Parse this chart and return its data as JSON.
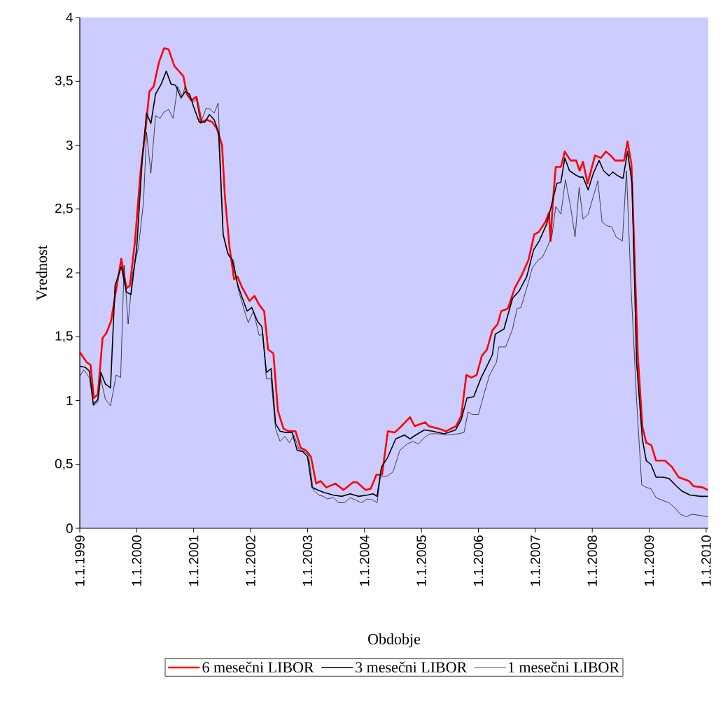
{
  "chart_data": {
    "type": "line",
    "xlabel": "Obdobje",
    "ylabel": "Vrednost",
    "legend": "bottom",
    "grid": false,
    "xlim": [
      "1999-01-01",
      "2010-01-15"
    ],
    "ylim": [
      0,
      4
    ],
    "xticks": [
      {
        "value": "1999-01-01",
        "label": "1.1.1999"
      },
      {
        "value": "2000-01-01",
        "label": "1.1.2000"
      },
      {
        "value": "2001-01-01",
        "label": "1.1.2001"
      },
      {
        "value": "2002-01-01",
        "label": "1.1.2002"
      },
      {
        "value": "2003-01-01",
        "label": "1.1.2003"
      },
      {
        "value": "2004-01-01",
        "label": "1.1.2004"
      },
      {
        "value": "2005-01-01",
        "label": "1.1.2005"
      },
      {
        "value": "2006-01-01",
        "label": "1.1.2006"
      },
      {
        "value": "2007-01-01",
        "label": "1.1.2007"
      },
      {
        "value": "2008-01-01",
        "label": "1.1.2008"
      },
      {
        "value": "2009-01-01",
        "label": "1.1.2009"
      },
      {
        "value": "2010-01-01",
        "label": "1.1.2010"
      }
    ],
    "yticks": [
      0,
      {
        "value": 0.5,
        "label": "0,5"
      },
      1,
      {
        "value": 1.5,
        "label": "1,5"
      },
      2,
      {
        "value": 2.5,
        "label": "2,5"
      },
      3,
      {
        "value": 3.5,
        "label": "3,5"
      },
      4
    ],
    "series": [
      {
        "name": "6 mesečni LIBOR",
        "color": "#ff0000",
        "x": [
          "1999-01-01",
          "1999-02-14",
          "1999-03-11",
          "1999-04-01",
          "1999-04-27",
          "1999-05-27",
          "1999-06-21",
          "1999-07-20",
          "1999-09-02",
          "1999-09-24",
          "1999-10-27",
          "1999-11-18",
          "1999-12-21",
          "2000-01-26",
          "2000-02-25",
          "2000-03-22",
          "2000-04-19",
          "2000-05-23",
          "2000-06-25",
          "2000-07-24",
          "2000-08-30",
          "2000-10-05",
          "2000-10-27",
          "2000-11-18",
          "2000-12-17",
          "2001-01-19",
          "2001-02-21",
          "2001-03-25",
          "2001-05-01",
          "2001-05-30",
          "2001-07-02",
          "2001-07-20",
          "2001-08-19",
          "2001-09-17",
          "2001-10-09",
          "2001-11-10",
          "2001-12-25",
          "2002-01-26",
          "2002-02-25",
          "2002-03-29",
          "2002-04-23",
          "2002-05-27",
          "2002-06-25",
          "2002-07-31",
          "2002-09-02",
          "2002-10-16",
          "2002-11-18",
          "2002-12-21",
          "2003-01-23",
          "2003-02-25",
          "2003-03-25",
          "2003-05-01",
          "2003-06-29",
          "2003-08-19",
          "2003-10-20",
          "2003-11-14",
          "2004-01-08",
          "2004-02-10",
          "2004-03-18",
          "2004-04-23",
          "2004-05-30",
          "2004-07-13",
          "2004-08-26",
          "2004-10-20",
          "2004-11-18",
          "2005-01-26",
          "2005-02-17",
          "2005-04-23",
          "2005-06-07",
          "2005-08-11",
          "2005-09-13",
          "2005-10-16",
          "2005-11-18",
          "2005-12-21",
          "2006-01-23",
          "2006-02-25",
          "2006-04-01",
          "2006-05-05",
          "2006-05-27",
          "2006-07-09",
          "2006-08-22",
          "2006-10-05",
          "2006-11-18",
          "2006-12-25",
          "2007-01-23",
          "2007-03-07",
          "2007-03-29",
          "2007-04-09",
          "2007-04-23",
          "2007-05-12",
          "2007-06-14",
          "2007-07-09",
          "2007-08-15",
          "2007-09-20",
          "2007-10-12",
          "2007-11-03",
          "2007-12-02",
          "2008-01-19",
          "2008-02-25",
          "2008-03-29",
          "2008-04-27",
          "2008-05-27",
          "2008-07-24",
          "2008-08-15",
          "2008-09-09",
          "2008-10-20",
          "2008-11-18",
          "2008-12-13",
          "2009-01-15",
          "2009-02-14",
          "2009-04-12",
          "2009-05-27",
          "2009-07-09",
          "2009-09-13",
          "2009-10-12",
          "2009-12-10",
          "2010-01-12"
        ],
        "values": [
          1.38,
          1.3,
          1.28,
          1.02,
          1.05,
          1.49,
          1.53,
          1.62,
          1.95,
          2.11,
          1.88,
          1.9,
          2.25,
          2.8,
          3.1,
          3.42,
          3.46,
          3.65,
          3.76,
          3.75,
          3.62,
          3.57,
          3.54,
          3.4,
          3.35,
          3.38,
          3.18,
          3.2,
          3.18,
          3.13,
          3.0,
          2.6,
          2.2,
          1.95,
          1.97,
          1.88,
          1.78,
          1.82,
          1.75,
          1.7,
          1.4,
          1.37,
          0.92,
          0.78,
          0.76,
          0.76,
          0.63,
          0.61,
          0.56,
          0.35,
          0.37,
          0.32,
          0.35,
          0.3,
          0.36,
          0.36,
          0.3,
          0.31,
          0.42,
          0.42,
          0.76,
          0.75,
          0.8,
          0.87,
          0.8,
          0.83,
          0.8,
          0.78,
          0.76,
          0.8,
          0.88,
          1.2,
          1.18,
          1.2,
          1.35,
          1.4,
          1.55,
          1.6,
          1.7,
          1.72,
          1.88,
          1.98,
          2.1,
          2.3,
          2.32,
          2.4,
          2.47,
          2.25,
          2.55,
          2.83,
          2.83,
          2.95,
          2.88,
          2.88,
          2.8,
          2.87,
          2.7,
          2.92,
          2.9,
          2.95,
          2.92,
          2.88,
          2.88,
          3.03,
          2.85,
          1.35,
          0.8,
          0.67,
          0.65,
          0.53,
          0.53,
          0.48,
          0.4,
          0.37,
          0.33,
          0.32,
          0.3
        ]
      },
      {
        "name": "3 mesečni LIBOR",
        "color": "#000000",
        "x": [
          "1999-01-01",
          "1999-02-06",
          "1999-03-04",
          "1999-03-29",
          "1999-04-27",
          "1999-05-16",
          "1999-06-14",
          "1999-07-17",
          "1999-08-15",
          "1999-09-24",
          "1999-10-27",
          "1999-11-25",
          "2000-01-01",
          "2000-02-06",
          "2000-03-04",
          "2000-04-01",
          "2000-05-01",
          "2000-06-07",
          "2000-07-09",
          "2000-08-08",
          "2000-09-06",
          "2000-10-12",
          "2000-11-07",
          "2000-12-06",
          "2001-01-01",
          "2001-02-06",
          "2001-03-14",
          "2001-04-12",
          "2001-05-12",
          "2001-06-10",
          "2001-07-09",
          "2001-08-08",
          "2001-09-06",
          "2001-10-12",
          "2001-11-10",
          "2001-12-10",
          "2002-01-08",
          "2002-02-14",
          "2002-03-14",
          "2002-04-12",
          "2002-05-12",
          "2002-06-10",
          "2002-07-09",
          "2002-08-15",
          "2002-09-24",
          "2002-10-27",
          "2002-12-02",
          "2003-01-01",
          "2003-01-30",
          "2003-03-07",
          "2003-04-19",
          "2003-06-14",
          "2003-08-08",
          "2003-10-01",
          "2003-11-25",
          "2004-01-19",
          "2004-02-25",
          "2004-03-22",
          "2004-04-19",
          "2004-05-27",
          "2004-07-20",
          "2004-09-13",
          "2004-10-20",
          "2004-11-25",
          "2005-01-19",
          "2005-03-14",
          "2005-05-27",
          "2005-08-08",
          "2005-09-13",
          "2005-10-20",
          "2005-12-02",
          "2006-01-19",
          "2006-02-25",
          "2006-04-01",
          "2006-04-19",
          "2006-06-14",
          "2006-08-08",
          "2006-09-20",
          "2006-11-07",
          "2006-12-21",
          "2007-01-26",
          "2007-03-14",
          "2007-04-19",
          "2007-05-19",
          "2007-06-14",
          "2007-07-09",
          "2007-08-08",
          "2007-09-13",
          "2007-10-12",
          "2007-11-03",
          "2007-12-06",
          "2008-01-08",
          "2008-02-14",
          "2008-03-14",
          "2008-04-19",
          "2008-05-12",
          "2008-06-14",
          "2008-07-17",
          "2008-08-15",
          "2008-09-13",
          "2008-10-12",
          "2008-11-18",
          "2008-12-13",
          "2009-01-12",
          "2009-02-14",
          "2009-04-01",
          "2009-05-08",
          "2009-06-25",
          "2009-07-31",
          "2009-09-20",
          "2009-11-25",
          "2010-01-12"
        ],
        "values": [
          1.27,
          1.26,
          1.23,
          0.97,
          1.01,
          1.22,
          1.13,
          1.1,
          1.9,
          2.05,
          1.85,
          1.83,
          2.2,
          2.9,
          3.25,
          3.17,
          3.4,
          3.48,
          3.58,
          3.48,
          3.47,
          3.37,
          3.42,
          3.4,
          3.3,
          3.18,
          3.18,
          3.24,
          3.2,
          3.1,
          2.3,
          2.15,
          2.1,
          1.9,
          1.8,
          1.7,
          1.73,
          1.62,
          1.58,
          1.22,
          1.25,
          0.82,
          0.76,
          0.75,
          0.75,
          0.61,
          0.6,
          0.56,
          0.32,
          0.3,
          0.28,
          0.26,
          0.25,
          0.27,
          0.25,
          0.26,
          0.27,
          0.25,
          0.48,
          0.55,
          0.7,
          0.73,
          0.7,
          0.73,
          0.77,
          0.76,
          0.74,
          0.77,
          0.85,
          1.02,
          1.03,
          1.18,
          1.27,
          1.36,
          1.52,
          1.56,
          1.8,
          1.86,
          1.97,
          2.18,
          2.25,
          2.38,
          2.55,
          2.7,
          2.71,
          2.9,
          2.8,
          2.77,
          2.75,
          2.75,
          2.65,
          2.78,
          2.88,
          2.8,
          2.76,
          2.79,
          2.76,
          2.74,
          2.95,
          2.7,
          1.3,
          0.7,
          0.53,
          0.5,
          0.4,
          0.4,
          0.39,
          0.33,
          0.29,
          0.26,
          0.25,
          0.25
        ]
      },
      {
        "name": "1 mesečni LIBOR",
        "color": "#000000",
        "x": [
          "1999-01-01",
          "1999-01-26",
          "1999-03-04",
          "1999-03-29",
          "1999-04-27",
          "1999-05-16",
          "1999-06-14",
          "1999-07-17",
          "1999-08-22",
          "1999-09-20",
          "1999-10-12",
          "1999-11-07",
          "1999-12-06",
          "2000-01-12",
          "2000-02-14",
          "2000-03-04",
          "2000-04-01",
          "2000-05-01",
          "2000-05-30",
          "2000-06-25",
          "2000-07-24",
          "2000-08-22",
          "2000-09-20",
          "2000-10-20",
          "2000-11-07",
          "2000-12-06",
          "2001-01-01",
          "2001-01-19",
          "2001-02-14",
          "2001-03-22",
          "2001-04-19",
          "2001-05-12",
          "2001-06-07",
          "2001-07-09",
          "2001-08-15",
          "2001-09-13",
          "2001-10-12",
          "2001-11-18",
          "2001-12-17",
          "2002-01-19",
          "2002-02-25",
          "2002-03-22",
          "2002-04-12",
          "2002-05-12",
          "2002-06-10",
          "2002-07-09",
          "2002-08-08",
          "2002-09-06",
          "2002-10-05",
          "2002-11-07",
          "2002-12-13",
          "2003-01-08",
          "2003-02-06",
          "2003-03-14",
          "2003-04-12",
          "2003-05-08",
          "2003-06-14",
          "2003-07-20",
          "2003-08-26",
          "2003-10-01",
          "2003-11-07",
          "2003-12-13",
          "2004-01-19",
          "2004-02-25",
          "2004-03-22",
          "2004-04-12",
          "2004-05-27",
          "2004-07-02",
          "2004-08-15",
          "2004-10-01",
          "2004-11-07",
          "2004-12-13",
          "2005-01-19",
          "2005-02-25",
          "2005-04-19",
          "2005-06-14",
          "2005-08-26",
          "2005-10-01",
          "2005-10-27",
          "2005-11-25",
          "2006-01-01",
          "2006-02-06",
          "2006-03-14",
          "2006-04-27",
          "2006-05-12",
          "2006-06-25",
          "2006-08-08",
          "2006-09-06",
          "2006-10-01",
          "2006-11-07",
          "2006-12-13",
          "2007-01-19",
          "2007-02-14",
          "2007-03-22",
          "2007-04-19",
          "2007-05-12",
          "2007-06-14",
          "2007-07-13",
          "2007-08-15",
          "2007-09-13",
          "2007-10-09",
          "2007-11-03",
          "2007-12-06",
          "2008-01-08",
          "2008-02-06",
          "2008-03-04",
          "2008-04-01",
          "2008-05-05",
          "2008-06-03",
          "2008-07-13",
          "2008-08-08",
          "2008-09-06",
          "2008-10-12",
          "2008-11-14",
          "2008-12-13",
          "2009-01-12",
          "2009-02-14",
          "2009-03-25",
          "2009-05-08",
          "2009-06-14",
          "2009-07-20",
          "2009-08-26",
          "2009-10-01",
          "2009-11-25",
          "2010-01-12"
        ],
        "values": [
          1.19,
          1.24,
          1.18,
          0.96,
          0.99,
          1.17,
          1.01,
          0.96,
          1.2,
          1.18,
          2.06,
          1.6,
          2.0,
          2.2,
          2.56,
          3.1,
          2.78,
          3.23,
          3.21,
          3.26,
          3.28,
          3.21,
          3.46,
          3.38,
          3.46,
          3.38,
          3.34,
          3.36,
          3.17,
          3.29,
          3.28,
          3.25,
          3.33,
          2.3,
          2.13,
          2.1,
          1.88,
          1.72,
          1.61,
          1.7,
          1.51,
          1.52,
          1.17,
          1.17,
          0.78,
          0.68,
          0.72,
          0.67,
          0.73,
          0.62,
          0.6,
          0.57,
          0.3,
          0.26,
          0.25,
          0.23,
          0.24,
          0.2,
          0.2,
          0.24,
          0.22,
          0.2,
          0.23,
          0.22,
          0.2,
          0.4,
          0.41,
          0.44,
          0.61,
          0.66,
          0.68,
          0.66,
          0.71,
          0.74,
          0.74,
          0.73,
          0.74,
          0.75,
          0.91,
          0.89,
          0.89,
          1.05,
          1.2,
          1.3,
          1.42,
          1.42,
          1.56,
          1.72,
          1.73,
          1.88,
          2.04,
          2.1,
          2.12,
          2.21,
          2.3,
          2.52,
          2.46,
          2.73,
          2.52,
          2.28,
          2.67,
          2.42,
          2.46,
          2.6,
          2.72,
          2.4,
          2.37,
          2.36,
          2.28,
          2.25,
          2.8,
          1.9,
          1.0,
          0.34,
          0.32,
          0.31,
          0.24,
          0.22,
          0.2,
          0.16,
          0.11,
          0.09,
          0.11,
          0.1,
          0.09
        ]
      }
    ]
  }
}
